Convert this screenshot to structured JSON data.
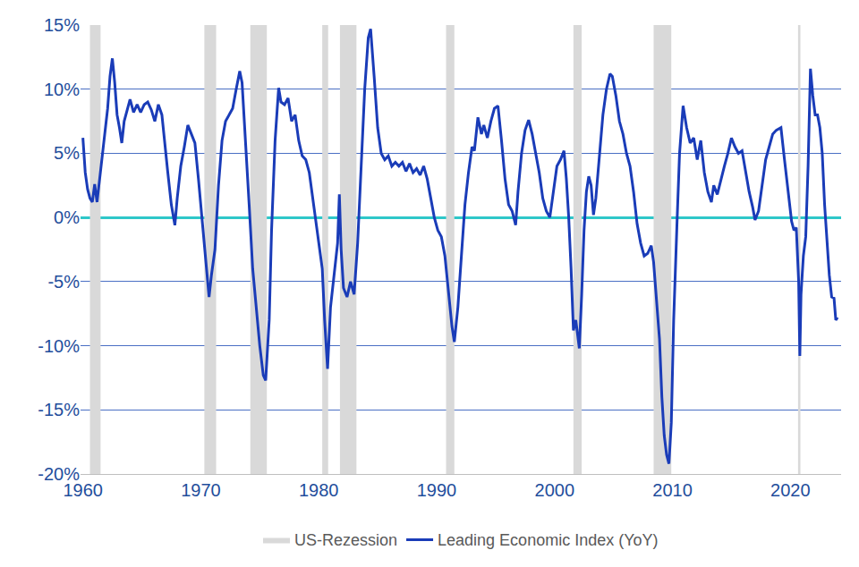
{
  "chart_data": {
    "type": "line",
    "x": [
      1960.0,
      1960.2,
      1960.4,
      1960.6,
      1960.8,
      1961.0,
      1961.2,
      1961.4,
      1961.6,
      1961.9,
      1962.1,
      1962.3,
      1962.5,
      1962.7,
      1962.9,
      1963.1,
      1963.3,
      1963.5,
      1963.8,
      1964.0,
      1964.3,
      1964.6,
      1964.9,
      1965.2,
      1965.5,
      1965.8,
      1966.1,
      1966.4,
      1966.7,
      1966.9,
      1967.2,
      1967.5,
      1967.8,
      1968.0,
      1968.3,
      1968.6,
      1968.9,
      1969.2,
      1969.5,
      1969.8,
      1970.1,
      1970.4,
      1970.7,
      1970.9,
      1971.2,
      1971.5,
      1971.8,
      1972.1,
      1972.4,
      1972.7,
      1973.0,
      1973.3,
      1973.5,
      1973.8,
      1974.1,
      1974.4,
      1974.7,
      1975.0,
      1975.3,
      1975.5,
      1975.8,
      1976.0,
      1976.3,
      1976.6,
      1976.8,
      1977.1,
      1977.4,
      1977.7,
      1978.0,
      1978.3,
      1978.6,
      1978.9,
      1979.2,
      1979.5,
      1979.8,
      1980.0,
      1980.3,
      1980.5,
      1980.75,
      1981.0,
      1981.3,
      1981.6,
      1981.75,
      1981.9,
      1982.1,
      1982.4,
      1982.7,
      1983.0,
      1983.3,
      1983.6,
      1983.9,
      1984.2,
      1984.4,
      1984.7,
      1985.0,
      1985.3,
      1985.6,
      1985.9,
      1986.2,
      1986.5,
      1986.8,
      1987.1,
      1987.4,
      1987.7,
      1988.0,
      1988.3,
      1988.6,
      1988.9,
      1989.2,
      1989.5,
      1989.8,
      1990.1,
      1990.4,
      1990.7,
      1991.0,
      1991.3,
      1991.5,
      1991.8,
      1992.1,
      1992.4,
      1992.7,
      1993.0,
      1993.2,
      1993.5,
      1993.8,
      1994.0,
      1994.3,
      1994.6,
      1994.9,
      1995.2,
      1995.5,
      1995.8,
      1996.1,
      1996.4,
      1996.7,
      1996.9,
      1997.2,
      1997.5,
      1997.8,
      1998.1,
      1998.4,
      1998.7,
      1999.0,
      1999.3,
      1999.6,
      1999.9,
      2000.2,
      2000.5,
      2000.8,
      2001.0,
      2001.2,
      2001.4,
      2001.6,
      2001.8,
      2002.0,
      2002.1,
      2002.3,
      2002.5,
      2002.7,
      2002.9,
      2003.1,
      2003.3,
      2003.5,
      2003.8,
      2004.1,
      2004.4,
      2004.7,
      2004.9,
      2005.2,
      2005.5,
      2005.8,
      2006.1,
      2006.4,
      2006.7,
      2007.0,
      2007.3,
      2007.6,
      2007.9,
      2008.2,
      2008.4,
      2008.6,
      2008.9,
      2009.1,
      2009.3,
      2009.5,
      2009.7,
      2009.9,
      2010.1,
      2010.4,
      2010.6,
      2010.9,
      2011.2,
      2011.5,
      2011.8,
      2012.1,
      2012.4,
      2012.7,
      2013.0,
      2013.3,
      2013.5,
      2013.8,
      2014.1,
      2014.4,
      2014.7,
      2015.0,
      2015.3,
      2015.6,
      2015.9,
      2016.2,
      2016.5,
      2016.8,
      2017.0,
      2017.3,
      2017.6,
      2017.9,
      2018.2,
      2018.5,
      2018.8,
      2019.2,
      2019.5,
      2019.8,
      2020.1,
      2020.3,
      2020.5,
      2020.7,
      2020.8,
      2020.9,
      2021.1,
      2021.3,
      2021.5,
      2021.7,
      2021.9,
      2022.1,
      2022.3,
      2022.5,
      2022.7,
      2022.9,
      2023.1,
      2023.3,
      2023.5,
      2023.7,
      2023.85,
      2024.0
    ],
    "series": [
      {
        "name": "Leading Economic Index (YoY)",
        "color": "#1a3cb8",
        "values": [
          6.2,
          3.5,
          2.2,
          1.5,
          1.2,
          2.6,
          1.2,
          2.8,
          4.5,
          7,
          8.5,
          11,
          12.4,
          10.5,
          8,
          7,
          5.8,
          7.5,
          8.5,
          9.2,
          8.2,
          8.8,
          8.2,
          8.8,
          9,
          8.4,
          7.5,
          8.8,
          8,
          6,
          3.5,
          1,
          -0.6,
          1.5,
          4,
          5.5,
          7.2,
          6.5,
          5.8,
          3,
          0,
          -3.5,
          -6.2,
          -4.5,
          -2.5,
          2.5,
          6,
          7.5,
          8,
          8.5,
          10,
          11.4,
          10.5,
          6,
          1,
          -4,
          -7,
          -10,
          -12.3,
          -12.7,
          -8,
          -1,
          6,
          10.1,
          9,
          8.8,
          9.3,
          7.5,
          8,
          6,
          4.8,
          4.5,
          3.5,
          1.5,
          -0.5,
          -2,
          -4,
          -8,
          -11.8,
          -7,
          -4.5,
          -2,
          1.8,
          -2.5,
          -5.5,
          -6.2,
          -5,
          -6,
          -2,
          4,
          10,
          14,
          14.7,
          11,
          7,
          5,
          4.5,
          4.8,
          4,
          4.3,
          4,
          4.3,
          3.6,
          4.2,
          3.5,
          3.8,
          3.3,
          4,
          3,
          1.5,
          0,
          -1,
          -1.5,
          -3,
          -6,
          -8.5,
          -9.7,
          -7,
          -3,
          1,
          3.5,
          5.5,
          5.2,
          7.8,
          6.5,
          7.2,
          6.2,
          7.5,
          8.5,
          8.7,
          6,
          3,
          1,
          0.5,
          -0.6,
          2,
          5,
          6.8,
          7.6,
          6.5,
          5,
          3.5,
          1.5,
          0.5,
          0,
          2,
          4,
          4.5,
          5.2,
          3,
          0,
          -4,
          -8.8,
          -8,
          -9.5,
          -10.2,
          -6,
          -1,
          2,
          3.2,
          2.5,
          0.2,
          1.5,
          5,
          8,
          10,
          11.2,
          11,
          9.5,
          7.5,
          6.5,
          5,
          4,
          2,
          -0.5,
          -2,
          -3,
          -2.8,
          -2.2,
          -3.5,
          -6,
          -9.5,
          -14,
          -17,
          -18.5,
          -19.2,
          -16,
          -8,
          0,
          5,
          8.7,
          7,
          5.8,
          6.2,
          4.5,
          6,
          3.5,
          2,
          1.2,
          2.5,
          1.8,
          3,
          4,
          5,
          6.2,
          5.5,
          5,
          5.2,
          3.5,
          2,
          0.8,
          -0.2,
          0.5,
          2.5,
          4.5,
          5.5,
          6.5,
          6.8,
          7,
          4.5,
          2,
          -0.3,
          -1,
          -0.8,
          -5,
          -10.8,
          -6,
          -3,
          -1.5,
          4,
          11.6,
          9.5,
          8,
          8,
          7,
          5,
          1,
          -2,
          -4.5,
          -6.2,
          -6.3,
          -8,
          -7.8
        ]
      }
    ],
    "recessions": {
      "name": "US-Rezession",
      "color": "#d9d9d9",
      "periods": [
        [
          1960.6,
          1961.5
        ],
        [
          1970.3,
          1971.3
        ],
        [
          1974.2,
          1975.6
        ],
        [
          1980.3,
          1980.8
        ],
        [
          1981.8,
          1983.2
        ],
        [
          1990.8,
          1991.5
        ],
        [
          2001.6,
          2002.3
        ],
        [
          2008.4,
          2009.9
        ],
        [
          2020.65,
          2020.85
        ]
      ]
    },
    "xlim": [
      1959.8,
      2024.3
    ],
    "xticks": [
      1960,
      1970,
      1980,
      1990,
      2000,
      2010,
      2020
    ],
    "ylim": [
      -20,
      15
    ],
    "yticks": [
      {
        "value": -20,
        "label": "-20%"
      },
      {
        "value": -15,
        "label": "-15%"
      },
      {
        "value": -10,
        "label": "-10%"
      },
      {
        "value": -5,
        "label": "-5%"
      },
      {
        "value": 0,
        "label": "0%"
      },
      {
        "value": 5,
        "label": "5%"
      },
      {
        "value": 10,
        "label": "10%"
      },
      {
        "value": 15,
        "label": "15%"
      }
    ],
    "grid": true,
    "legend": "bottom"
  }
}
